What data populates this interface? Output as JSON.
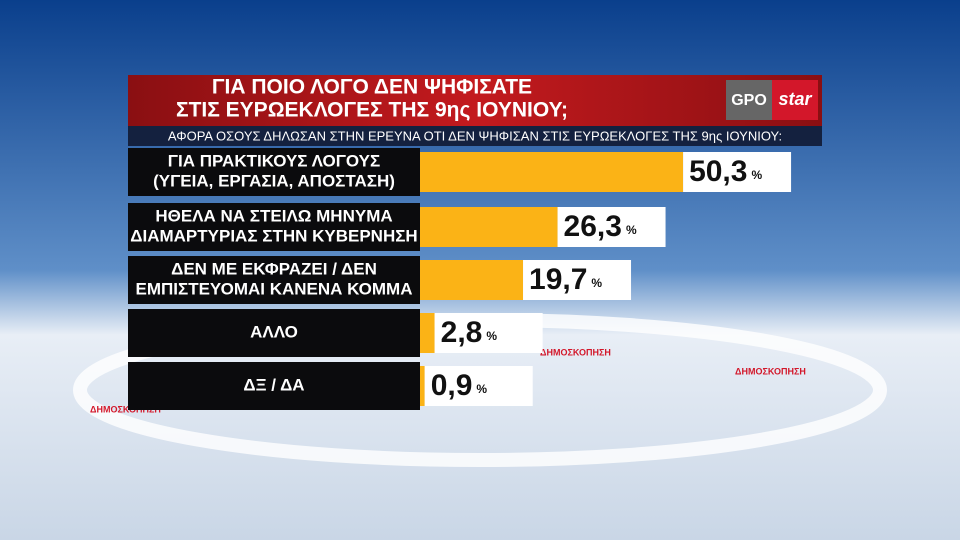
{
  "chart_data": {
    "type": "bar",
    "orientation": "horizontal",
    "title": [
      "ΓΙΑ ΠΟΙΟ ΛΟΓΟ ΔΕΝ ΨΗΦΙΣΑΤΕ",
      "ΣΤΙΣ ΕΥΡΩΕΚΛΟΓΕΣ ΤΗΣ 9ης ΙΟΥΝΙΟΥ;"
    ],
    "subtitle": "ΑΦΟΡΑ ΟΣΟΥΣ ΔΗΛΩΣΑΝ ΣΤΗΝ ΕΡΕΥΝΑ ΟΤΙ ΔΕΝ ΨΗΦΙΣΑΝ ΣΤΙΣ ΕΥΡΩΕΚΛΟΓΕΣ ΤΗΣ 9ης ΙΟΥΝΙΟΥ:",
    "logo": [
      "GPO",
      "star"
    ],
    "categories": [
      [
        "ΓΙΑ ΠΡΑΚΤΙΚΟΥΣ ΛΟΓΟΥΣ",
        "(ΥΓΕΙΑ, ΕΡΓΑΣΙΑ, ΑΠΟΣΤΑΣΗ)"
      ],
      [
        "ΗΘΕΛΑ ΝΑ ΣΤΕΙΛΩ ΜΗΝΥΜΑ",
        "ΔΙΑΜΑΡΤΥΡΙΑΣ ΣΤΗΝ ΚΥΒΕΡΝΗΣΗ"
      ],
      [
        "ΔΕΝ ΜΕ ΕΚΦΡΑΖΕΙ / ΔΕΝ",
        "ΕΜΠΙΣΤΕΥΟΜΑΙ ΚΑΝΕΝΑ ΚΟΜΜΑ"
      ],
      [
        "ΑΛΛΟ"
      ],
      [
        "ΔΞ /  ΔΑ"
      ]
    ],
    "values": [
      50.3,
      26.3,
      19.7,
      2.8,
      0.9
    ],
    "value_labels": [
      "50,3",
      "26,3",
      "19,7",
      "2,8",
      "0,9"
    ],
    "unit": "%",
    "color": "#fbb316",
    "background_text": "ΔΗΜΟΣΚΟΠΗΣΗ"
  }
}
